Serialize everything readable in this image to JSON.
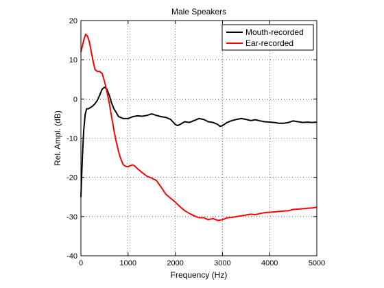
{
  "chart_data": {
    "type": "line",
    "title": "Male Speakers",
    "xlabel": "Frequency (Hz)",
    "ylabel": "Rel. Ampl. (dB)",
    "xlim": [
      0,
      5000
    ],
    "ylim": [
      -40,
      20
    ],
    "xticks": [
      0,
      1000,
      2000,
      3000,
      4000,
      5000
    ],
    "yticks": [
      -40,
      -30,
      -20,
      -10,
      0,
      10,
      20
    ],
    "grid": true,
    "legend_position": "top-right",
    "series": [
      {
        "name": "Mouth-recorded",
        "color": "#000000",
        "points": [
          [
            0,
            -25
          ],
          [
            30,
            -15
          ],
          [
            60,
            -8
          ],
          [
            90,
            -4
          ],
          [
            120,
            -2.5
          ],
          [
            160,
            -2.5
          ],
          [
            200,
            -2.2
          ],
          [
            250,
            -1.8
          ],
          [
            300,
            -1.2
          ],
          [
            350,
            -0.3
          ],
          [
            400,
            1.0
          ],
          [
            450,
            2.5
          ],
          [
            500,
            3.0
          ],
          [
            550,
            2.5
          ],
          [
            600,
            1.0
          ],
          [
            650,
            -1.0
          ],
          [
            700,
            -2.5
          ],
          [
            750,
            -3.5
          ],
          [
            800,
            -4.5
          ],
          [
            900,
            -5.0
          ],
          [
            1000,
            -5.0
          ],
          [
            1100,
            -4.5
          ],
          [
            1200,
            -4.3
          ],
          [
            1300,
            -4.4
          ],
          [
            1400,
            -4.2
          ],
          [
            1450,
            -4.0
          ],
          [
            1500,
            -3.8
          ],
          [
            1600,
            -4.2
          ],
          [
            1700,
            -4.5
          ],
          [
            1800,
            -4.7
          ],
          [
            1900,
            -5.2
          ],
          [
            2000,
            -6.5
          ],
          [
            2050,
            -6.8
          ],
          [
            2100,
            -6.5
          ],
          [
            2200,
            -5.8
          ],
          [
            2300,
            -6.0
          ],
          [
            2400,
            -5.5
          ],
          [
            2500,
            -5.0
          ],
          [
            2600,
            -5.2
          ],
          [
            2700,
            -5.8
          ],
          [
            2800,
            -6.0
          ],
          [
            2900,
            -6.5
          ],
          [
            2950,
            -7.0
          ],
          [
            3000,
            -6.8
          ],
          [
            3100,
            -6.0
          ],
          [
            3200,
            -5.5
          ],
          [
            3300,
            -5.2
          ],
          [
            3400,
            -5.0
          ],
          [
            3500,
            -5.2
          ],
          [
            3600,
            -5.5
          ],
          [
            3700,
            -5.3
          ],
          [
            3800,
            -5.6
          ],
          [
            3900,
            -5.8
          ],
          [
            4000,
            -5.9
          ],
          [
            4100,
            -6.0
          ],
          [
            4200,
            -6.2
          ],
          [
            4300,
            -6.2
          ],
          [
            4400,
            -6.0
          ],
          [
            4500,
            -5.6
          ],
          [
            4600,
            -5.8
          ],
          [
            4700,
            -6.0
          ],
          [
            4800,
            -5.9
          ],
          [
            4900,
            -6.0
          ],
          [
            5000,
            -5.9
          ]
        ]
      },
      {
        "name": "Ear-recorded",
        "color": "#ff0000",
        "points": [
          [
            0,
            12
          ],
          [
            30,
            13.5
          ],
          [
            60,
            15
          ],
          [
            100,
            16.5
          ],
          [
            140,
            16.0
          ],
          [
            180,
            14.5
          ],
          [
            220,
            12.0
          ],
          [
            260,
            9.5
          ],
          [
            300,
            7.5
          ],
          [
            350,
            7.0
          ],
          [
            400,
            7.0
          ],
          [
            450,
            6.5
          ],
          [
            500,
            4.5
          ],
          [
            550,
            2.0
          ],
          [
            600,
            -1.0
          ],
          [
            650,
            -4.5
          ],
          [
            700,
            -8.0
          ],
          [
            750,
            -11.0
          ],
          [
            800,
            -13.5
          ],
          [
            850,
            -15.5
          ],
          [
            900,
            -16.8
          ],
          [
            950,
            -17.2
          ],
          [
            1000,
            -17.3
          ],
          [
            1050,
            -17.0
          ],
          [
            1100,
            -16.8
          ],
          [
            1150,
            -17.2
          ],
          [
            1200,
            -17.8
          ],
          [
            1300,
            -18.8
          ],
          [
            1400,
            -19.7
          ],
          [
            1500,
            -20.2
          ],
          [
            1600,
            -20.8
          ],
          [
            1700,
            -22.5
          ],
          [
            1800,
            -24.3
          ],
          [
            1900,
            -25.3
          ],
          [
            2000,
            -26.3
          ],
          [
            2100,
            -27.5
          ],
          [
            2200,
            -28.5
          ],
          [
            2300,
            -29.2
          ],
          [
            2400,
            -29.8
          ],
          [
            2500,
            -30.3
          ],
          [
            2600,
            -30.3
          ],
          [
            2700,
            -30.8
          ],
          [
            2800,
            -30.5
          ],
          [
            2900,
            -31.0
          ],
          [
            3000,
            -30.8
          ],
          [
            3100,
            -30.3
          ],
          [
            3200,
            -30.2
          ],
          [
            3300,
            -30.0
          ],
          [
            3400,
            -29.8
          ],
          [
            3500,
            -29.6
          ],
          [
            3600,
            -29.4
          ],
          [
            3700,
            -29.5
          ],
          [
            3800,
            -29.2
          ],
          [
            3900,
            -29.0
          ],
          [
            4000,
            -28.9
          ],
          [
            4100,
            -28.8
          ],
          [
            4200,
            -28.7
          ],
          [
            4300,
            -28.6
          ],
          [
            4400,
            -28.5
          ],
          [
            4500,
            -28.2
          ],
          [
            4600,
            -28.1
          ],
          [
            4700,
            -28.0
          ],
          [
            4800,
            -27.9
          ],
          [
            4900,
            -27.8
          ],
          [
            5000,
            -27.6
          ]
        ]
      }
    ]
  }
}
